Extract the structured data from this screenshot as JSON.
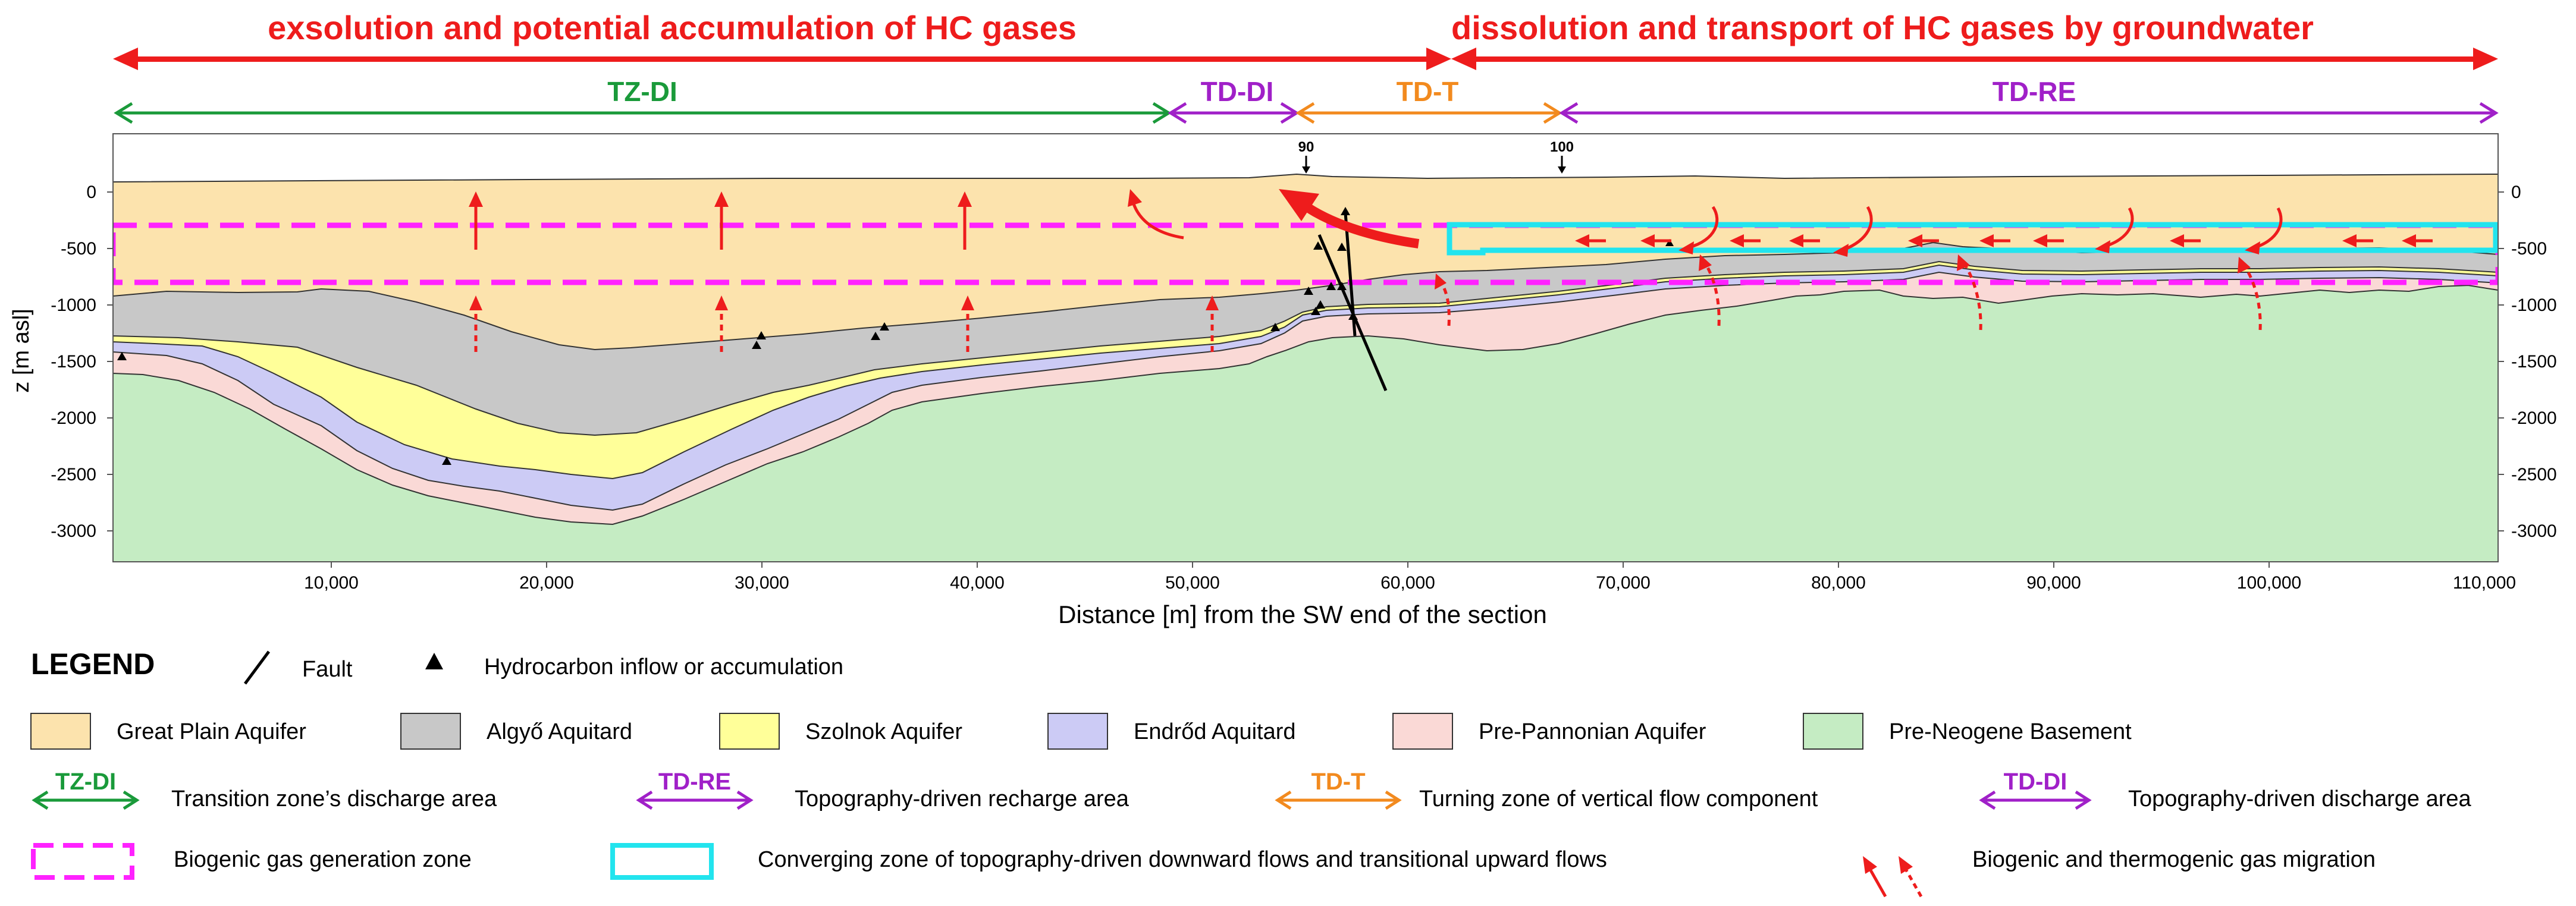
{
  "colors": {
    "red": "#ee1c1c",
    "green": "#1a9a3a",
    "purple": "#a020c8",
    "orange": "#f28a1e",
    "magenta": "#ff22ff",
    "cyan": "#22e4ee",
    "great_plain": "#fce3ad",
    "algyo": "#c8c8c8",
    "szolnok": "#ffff99",
    "endrod": "#cccbf5",
    "pre_pannonian": "#fad9d6",
    "basement": "#c5ecc3"
  },
  "banner": {
    "left": "exsolution and potential accumulation of HC gases",
    "right": "dissolution and transport of HC gases by groundwater"
  },
  "zones": {
    "tzdi": "TZ-DI",
    "tddi": "TD-DI",
    "tdt": "TD-T",
    "tdre": "TD-RE"
  },
  "section": {
    "markers": [
      "90",
      "100"
    ],
    "y_label": "z [m asl]",
    "x_label": "Distance [m] from the SW end of the section",
    "y_ticks": [
      "0",
      "-500",
      "-1000",
      "-1500",
      "-2000",
      "-2500",
      "-3000"
    ],
    "x_ticks": [
      "10,000",
      "20,000",
      "30,000",
      "40,000",
      "50,000",
      "60,000",
      "70,000",
      "80,000",
      "90,000",
      "100,000",
      "110,000"
    ]
  },
  "legend": {
    "title": "LEGEND",
    "fault": "Fault",
    "hydrocarbon": "Hydrocarbon inflow or accumulation",
    "units": {
      "great_plain": "Great Plain Aquifer",
      "algyo": "Algyő Aquitard",
      "szolnok": "Szolnok Aquifer",
      "endrod": "Endrőd Aquitard",
      "pre_pannonian": "Pre-Pannonian Aquifer",
      "basement": "Pre-Neogene Basement"
    },
    "zones": {
      "tzdi": "Transition zone’s discharge area",
      "tdre": "Topography-driven recharge area",
      "tdt": "Turning zone of vertical flow component",
      "tddi": "Topography-driven discharge area"
    },
    "biogenic_zone": "Biogenic gas generation zone",
    "converging_zone": "Converging zone of topography-driven downward flows and transitional upward flows",
    "migration": "Biogenic and thermogenic gas migration"
  }
}
